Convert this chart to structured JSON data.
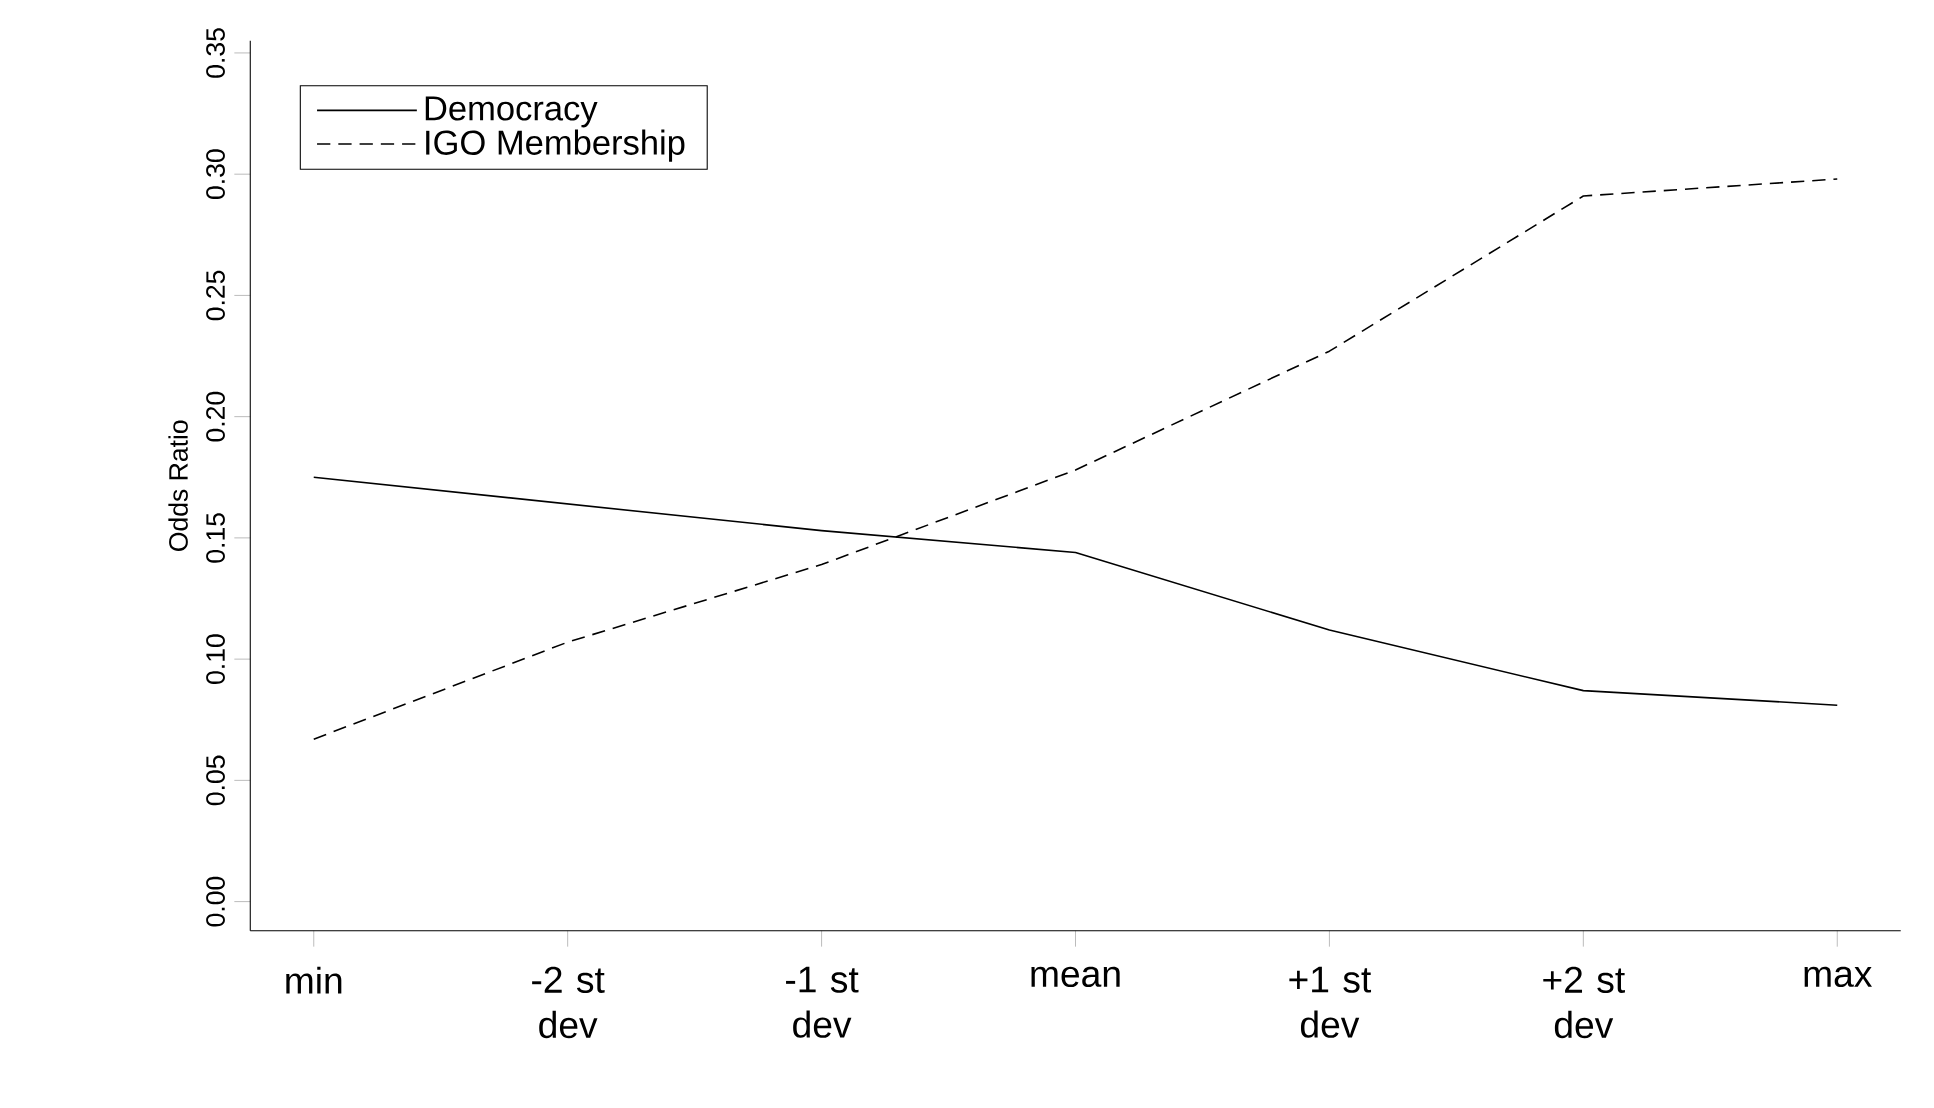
{
  "chart_data": {
    "type": "line",
    "ylabel": "Odds Ratio",
    "categories": [
      "min",
      "-2 st dev",
      "-1 st dev",
      "mean",
      "+1 st dev",
      "+2 st dev",
      "max"
    ],
    "series": [
      {
        "name": "Democracy",
        "color": "#000000",
        "line_style": "solid",
        "values": [
          0.175,
          0.164,
          0.153,
          0.144,
          0.112,
          0.087,
          0.081
        ]
      },
      {
        "name": "IGO Membership",
        "color": "#000000",
        "line_style": "dashed",
        "values": [
          0.067,
          0.107,
          0.139,
          0.178,
          0.227,
          0.291,
          0.298
        ]
      }
    ],
    "ylim": [
      -0.012,
      0.355
    ],
    "yticks": [
      {
        "value": 0,
        "label": "0.00"
      },
      {
        "value": 0.05,
        "label": "0.05"
      },
      {
        "value": 0.1,
        "label": "0.10"
      },
      {
        "value": 0.15,
        "label": "0.15"
      },
      {
        "value": 0.2,
        "label": "0.20"
      },
      {
        "value": 0.25,
        "label": "0.25"
      },
      {
        "value": 0.3,
        "label": "0.30"
      },
      {
        "value": 0.35,
        "label": "0.35"
      }
    ],
    "legend": "top left",
    "marker": "none"
  }
}
